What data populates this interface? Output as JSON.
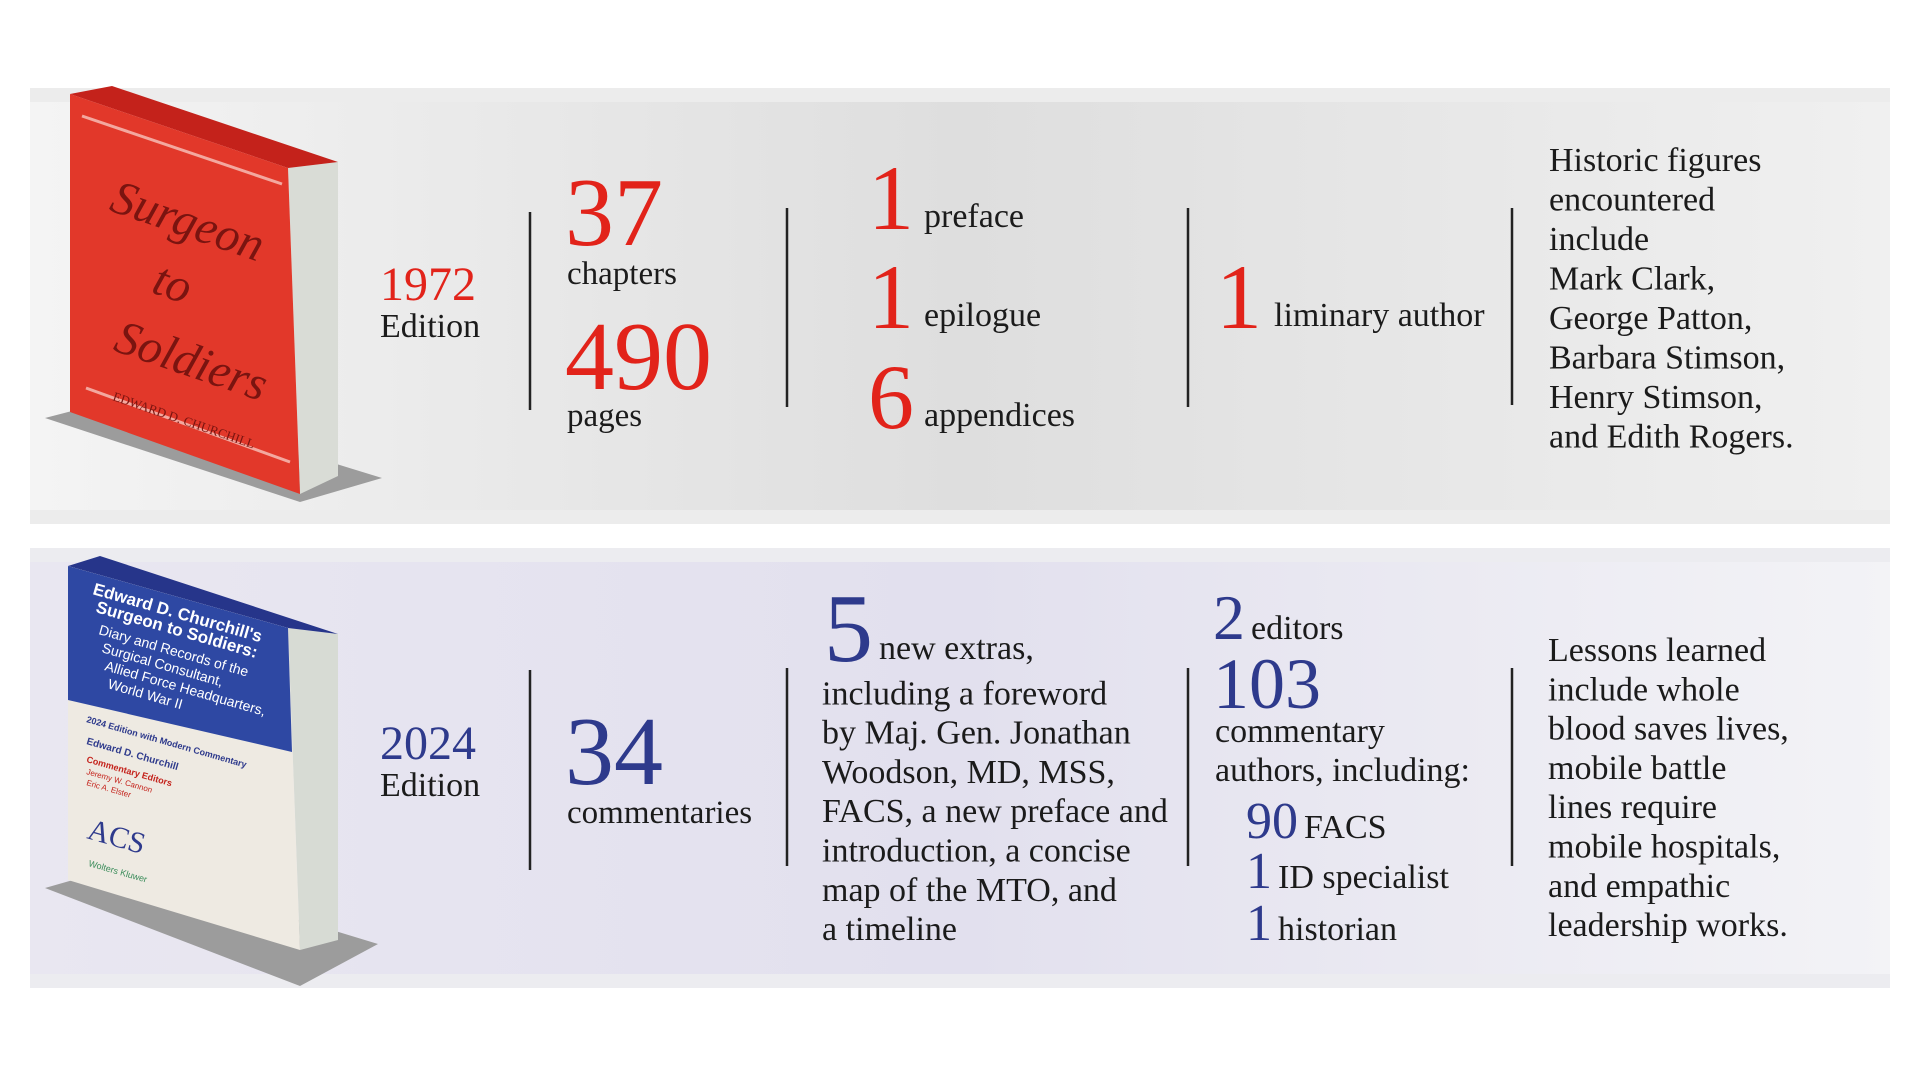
{
  "editions": [
    {
      "year": "1972",
      "label": "Edition",
      "cover": {
        "title": [
          "Surgeon",
          "to",
          "Soldiers"
        ],
        "author": "EDWARD D. CHURCHILL"
      },
      "counts": [
        {
          "number": "37",
          "label": "chapters"
        },
        {
          "number": "490",
          "label": "pages"
        }
      ],
      "extras": [
        {
          "number": "1",
          "label": "preface"
        },
        {
          "number": "1",
          "label": "epilogue"
        },
        {
          "number": "6",
          "label": "appendices"
        }
      ],
      "authors": [
        {
          "number": "1",
          "label": "liminary author"
        }
      ],
      "notes": [
        "Historic figures",
        "encountered",
        "include",
        "Mark Clark,",
        "George Patton,",
        "Barbara Stimson,",
        "Henry Stimson,",
        "and Edith Rogers."
      ]
    },
    {
      "year": "2024",
      "label": "Edition",
      "cover": {
        "title": [
          "Edward D. Churchill's",
          "Surgeon to Soldiers:",
          "Diary and Records of the",
          "Surgical Consultant,",
          "Allied Force Headquarters,",
          "World War II"
        ],
        "subtitle": "2024 Edition with Modern Commentary",
        "author": "Edward D. Churchill",
        "editors_heading": "Commentary Editors",
        "editors": [
          "Jeremy W. Cannon",
          "Eric A. Elster"
        ],
        "logo": "ACS",
        "publisher": "Wolters Kluwer"
      },
      "counts": [
        {
          "number": "34",
          "label": "commentaries"
        }
      ],
      "extras": [
        {
          "number": "5",
          "lines": [
            "new extras,",
            "including a foreword",
            "by Maj. Gen. Jonathan",
            "Woodson, MD, MSS,",
            "FACS, a new preface and",
            "introduction, a concise",
            "map of the MTO, and",
            "a timeline"
          ]
        }
      ],
      "authors": [
        {
          "number": "2",
          "lines": [
            "editors"
          ]
        },
        {
          "number": "103",
          "lines": [
            "commentary",
            "authors, including:"
          ]
        }
      ],
      "breakdown": [
        {
          "number": "90",
          "label": "FACS"
        },
        {
          "number": "1",
          "label": "ID specialist"
        },
        {
          "number": "1",
          "label": "historian"
        }
      ],
      "notes": [
        "Lessons learned",
        "include whole",
        "blood saves lives,",
        "mobile battle",
        "lines require",
        "mobile hospitals,",
        "and empathic",
        "leadership works."
      ]
    }
  ]
}
